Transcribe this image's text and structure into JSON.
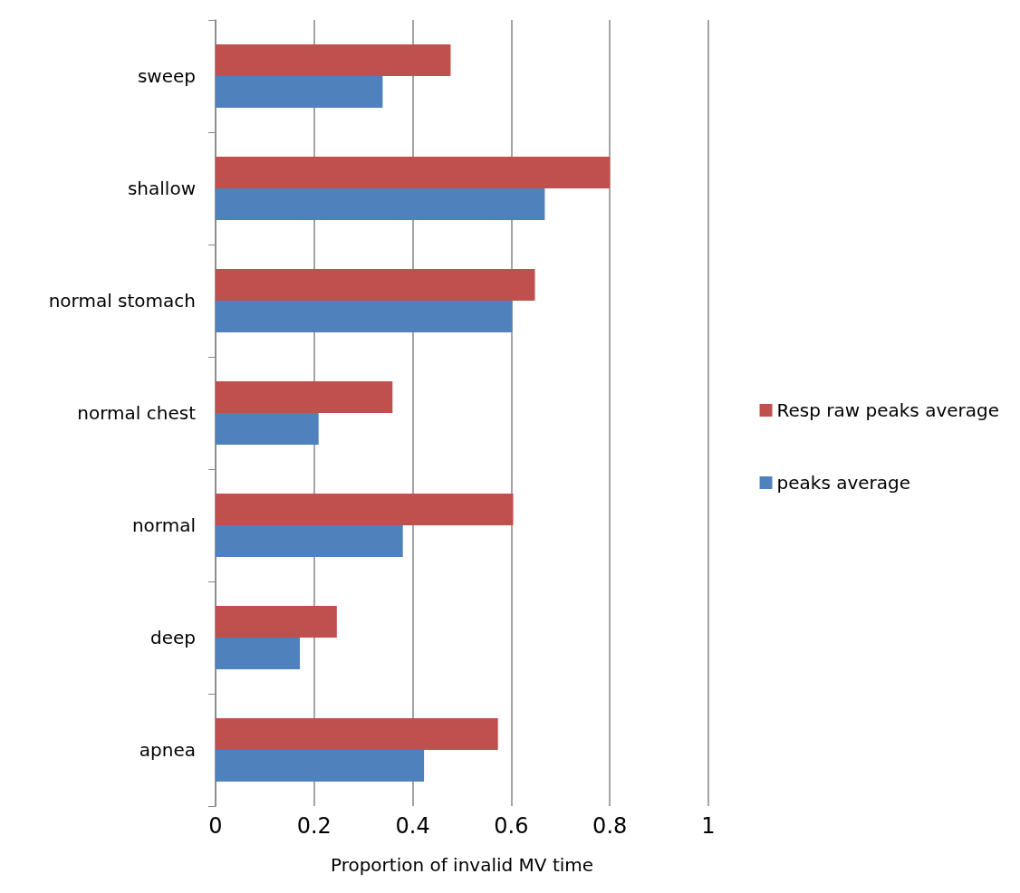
{
  "chart_data": {
    "type": "bar",
    "orientation": "horizontal",
    "xlabel": "Proportion of invalid MV time",
    "categories": [
      "sweep",
      "shallow",
      "normal stomach",
      "normal chest",
      "normal",
      "deep",
      "apnea"
    ],
    "series": [
      {
        "name": "Resp raw peaks average",
        "color": "#c0504d",
        "values": [
          0.477,
          0.8,
          0.648,
          0.359,
          0.604,
          0.246,
          0.573
        ]
      },
      {
        "name": "peaks average",
        "color": "#4f81bd",
        "values": [
          0.339,
          0.668,
          0.602,
          0.209,
          0.38,
          0.171,
          0.423
        ]
      }
    ],
    "xlim": [
      0,
      1
    ],
    "xticks": [
      0,
      0.2,
      0.4,
      0.6,
      0.8,
      1
    ],
    "grid": "x",
    "legend": "right"
  }
}
